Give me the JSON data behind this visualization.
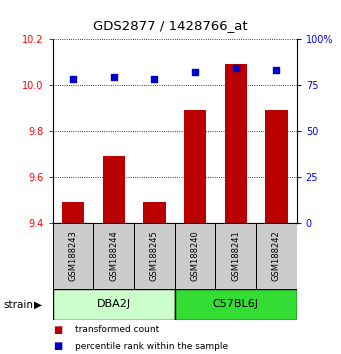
{
  "title": "GDS2877 / 1428766_at",
  "samples": [
    "GSM188243",
    "GSM188244",
    "GSM188245",
    "GSM188240",
    "GSM188241",
    "GSM188242"
  ],
  "bar_values": [
    9.49,
    9.69,
    9.49,
    9.89,
    10.09,
    9.89
  ],
  "scatter_values": [
    78,
    79.5,
    78.5,
    82,
    84,
    83
  ],
  "ylim_left": [
    9.4,
    10.2
  ],
  "ylim_right": [
    0,
    100
  ],
  "yticks_left": [
    9.4,
    9.6,
    9.8,
    10.0,
    10.2
  ],
  "yticks_right": [
    0,
    25,
    50,
    75,
    100
  ],
  "bar_color": "#bb0000",
  "scatter_color": "#0000cc",
  "groups": [
    {
      "label": "DBA2J",
      "start": 0,
      "end": 2,
      "color": "#ccffcc"
    },
    {
      "label": "C57BL6J",
      "start": 3,
      "end": 5,
      "color": "#33dd33"
    }
  ],
  "group_label": "strain",
  "legend_bar_label": "transformed count",
  "legend_scatter_label": "percentile rank within the sample",
  "bar_bottom": 9.4,
  "bar_width": 0.55
}
